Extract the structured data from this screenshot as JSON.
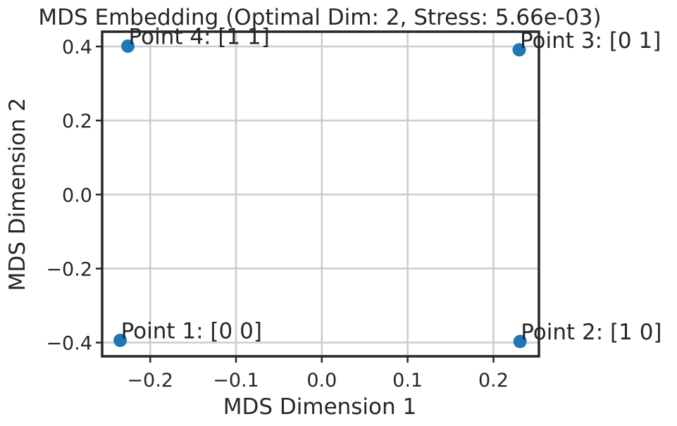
{
  "chart_data": {
    "type": "scatter",
    "title": "MDS Embedding (Optimal Dim: 2, Stress: 5.66e-03)",
    "xlabel": "MDS Dimension 1",
    "ylabel": "MDS Dimension 2",
    "xlim": [
      -0.256,
      0.253
    ],
    "ylim": [
      -0.437,
      0.44
    ],
    "xticks": [
      -0.2,
      -0.1,
      0.0,
      0.1,
      0.2
    ],
    "xtick_labels": [
      "−0.2",
      "−0.1",
      "0.0",
      "0.1",
      "0.2"
    ],
    "yticks": [
      -0.4,
      -0.2,
      0.0,
      0.2,
      0.4
    ],
    "ytick_labels": [
      "−0.4",
      "−0.2",
      "0.0",
      "0.2",
      "0.4"
    ],
    "grid": true,
    "marker_color": "#1f77b4",
    "points": [
      {
        "x": -0.235,
        "y": -0.394,
        "label": "Point 1: [0 0]"
      },
      {
        "x": 0.231,
        "y": -0.397,
        "label": "Point 2: [1 0]"
      },
      {
        "x": 0.23,
        "y": 0.391,
        "label": "Point 3: [0 1]"
      },
      {
        "x": -0.226,
        "y": 0.401,
        "label": "Point 4: [1 1]"
      }
    ]
  }
}
